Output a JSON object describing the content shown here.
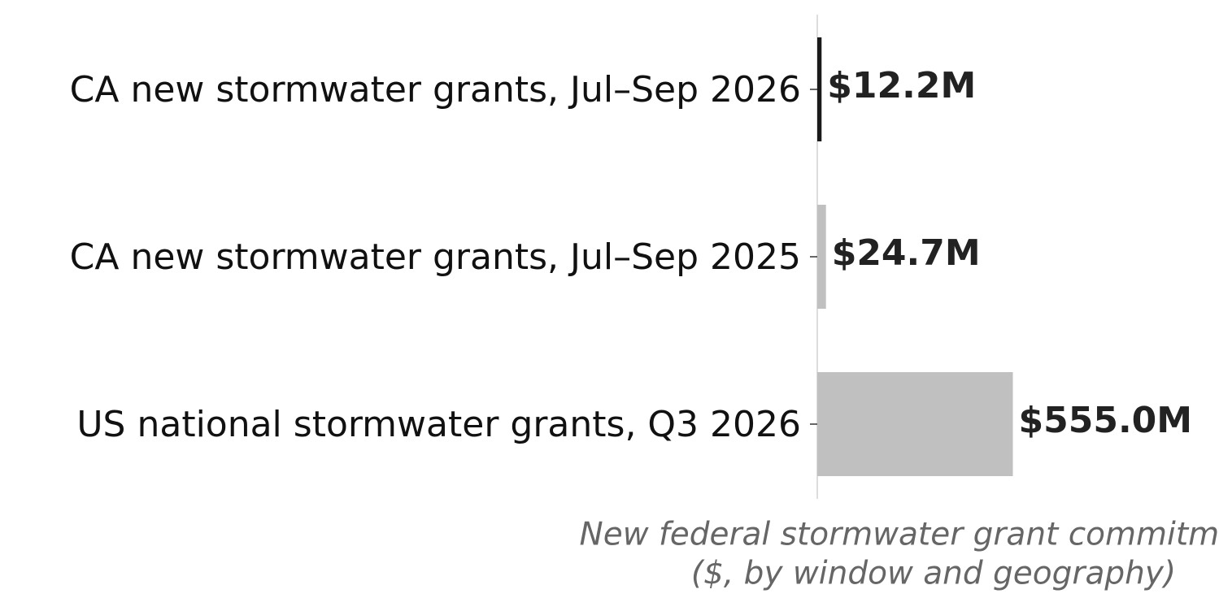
{
  "chart_data": {
    "type": "bar",
    "orientation": "horizontal",
    "categories": [
      "CA new stormwater grants, Jul–Sep 2026",
      "CA new stormwater grants, Jul–Sep 2025",
      "US national stormwater grants, Q3 2026"
    ],
    "values": [
      12.2,
      24.7,
      555.0
    ],
    "value_labels": [
      "$12.2M",
      "$24.7M",
      "$555.0M"
    ],
    "colors": [
      "#1a1a1a",
      "#c0c0c0",
      "#c0c0c0"
    ],
    "xlim": [
      0,
      660
    ],
    "xlabel": [
      "New federal stormwater grant commitments",
      "($, by window and geography)"
    ]
  }
}
